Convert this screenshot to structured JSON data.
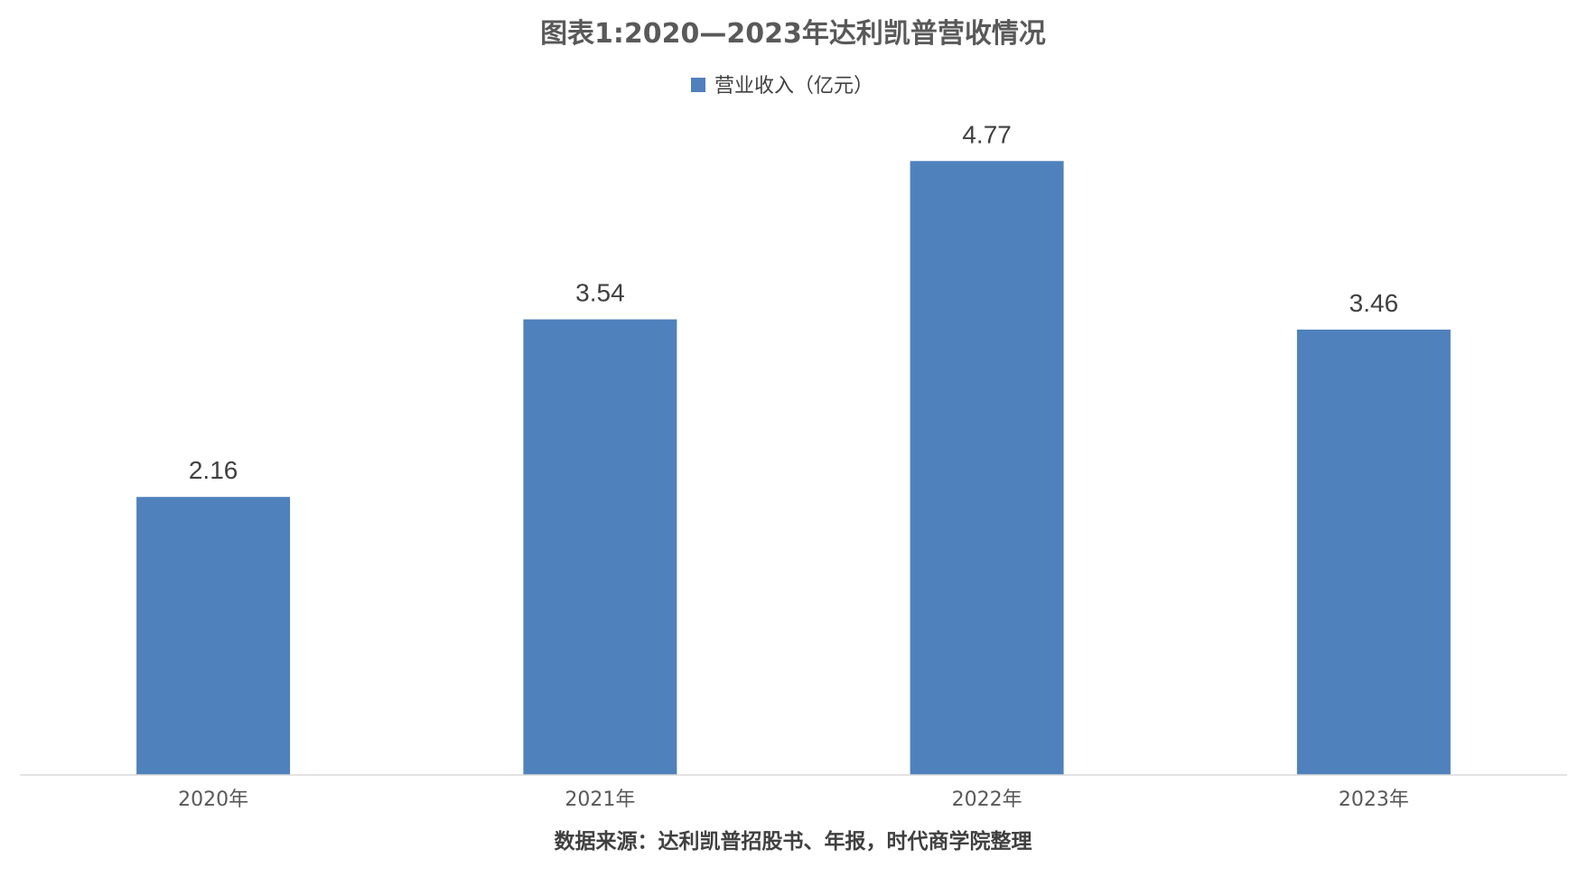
{
  "chart_data": {
    "type": "bar",
    "title": "图表1:2020—2023年达利凯普营收情况",
    "categories": [
      "2020年",
      "2021年",
      "2022年",
      "2023年"
    ],
    "series": [
      {
        "name": "营业收入（亿元）",
        "values": [
          2.16,
          3.54,
          4.77,
          3.46
        ],
        "color": "#4F81BD"
      }
    ],
    "data_labels": [
      "2.16",
      "3.54",
      "4.77",
      "3.46"
    ],
    "ylim": [
      0,
      5.5
    ],
    "grid": false,
    "legend_position": "top-center",
    "show_value_axis": false
  },
  "source_note": "数据来源：达利凯普招股书、年报，时代商学院整理",
  "colors": {
    "bar": "#4F81BD",
    "axis": "#D9D9D9"
  }
}
